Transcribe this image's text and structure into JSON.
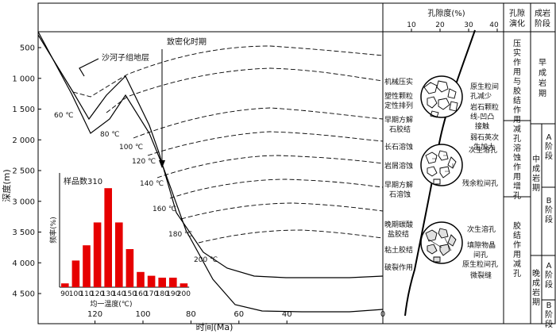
{
  "axes": {
    "x_label": "时间(Ma)",
    "y_label": "深度(m)",
    "x_ticks": [
      {
        "v": 120,
        "label": "120"
      },
      {
        "v": 100,
        "label": "100"
      },
      {
        "v": 80,
        "label": "80"
      },
      {
        "v": 60,
        "label": "60"
      },
      {
        "v": 40,
        "label": "40"
      },
      {
        "v": 0,
        "label": "0"
      }
    ],
    "y_ticks": [
      {
        "v": 500,
        "label": "500"
      },
      {
        "v": 1000,
        "label": "1 000"
      },
      {
        "v": 1500,
        "label": "1 500"
      },
      {
        "v": 2000,
        "label": "2 000"
      },
      {
        "v": 2500,
        "label": "2 500"
      },
      {
        "v": 3000,
        "label": "3 000"
      },
      {
        "v": 3500,
        "label": "3 500"
      },
      {
        "v": 4000,
        "label": "4 000"
      },
      {
        "v": 4500,
        "label": "4 500"
      }
    ]
  },
  "labels": {
    "formation": "沙河子组地层",
    "densification": "致密化时期"
  },
  "isotherms": [
    "60 ℃",
    "80 ℃",
    "100 ℃",
    "120 ℃",
    "140 ℃",
    "160 ℃",
    "180 ℃",
    "200 ℃"
  ],
  "porosity_axis": {
    "title": "孔隙度(%)",
    "ticks": [
      "10",
      "20",
      "30",
      "40"
    ]
  },
  "processes": {
    "left": [
      "机械压实",
      "塑性颗粒",
      "定性排列",
      "早期方解",
      "石胶结",
      "长石溶蚀",
      "岩屑溶蚀",
      "早期方解",
      "石溶蚀",
      "晚期碳酸",
      "盐胶结",
      "粘土胶结",
      "破裂作用"
    ],
    "right": [
      "原生粒间",
      "孔减少",
      "岩石颗粒",
      "线-凹凸",
      "接触",
      "弱石英次",
      "生加大",
      "次生溶孔",
      "残余粒间孔",
      "次生溶孔",
      "填隙物晶",
      "间孔",
      "原生粒间孔",
      "微裂缝"
    ]
  },
  "table": {
    "col1_header": [
      "孔隙",
      "演化"
    ],
    "col2_header": [
      "成岩",
      "阶段"
    ],
    "evolution": [
      {
        "text": "压实作用与胶结作用减孔"
      },
      {
        "text": "溶蚀作用增孔"
      },
      {
        "text": "胶结作用减孔"
      }
    ],
    "stage_early": "早成岩期",
    "stage_middle": "中成岩期",
    "stage_late": "晚成岩期",
    "sub_a": "A阶段",
    "sub_b": "B阶段"
  },
  "chart_data": {
    "type": "bar",
    "title": "样品数310",
    "xlabel": "均一温度(℃)",
    "ylabel": "频率(%)",
    "categories": [
      "90",
      "100",
      "110",
      "120",
      "130",
      "140",
      "150",
      "160",
      "170",
      "180",
      "190",
      "200"
    ],
    "values": [
      1,
      7,
      11,
      17,
      26,
      17,
      10,
      4,
      3,
      2.5,
      2.5,
      1
    ],
    "ylim": [
      0,
      30
    ],
    "bar_color": "#e60000"
  }
}
